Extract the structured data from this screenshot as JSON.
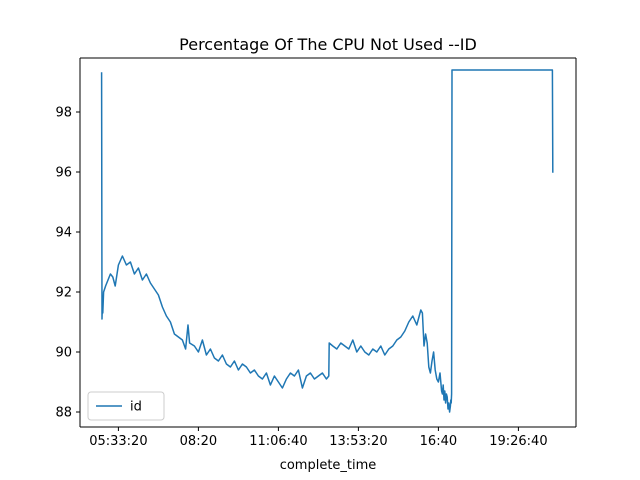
{
  "chart_data": {
    "type": "line",
    "title": "Percentage Of The CPU Not Used --ID",
    "xlabel": "complete_time",
    "ylabel": "",
    "x_tick_labels": [
      "05:33:20",
      "08:20",
      "11:06:40",
      "13:53:20",
      "16:40",
      "19:26:40"
    ],
    "x_ticks_seconds": [
      20000,
      30000,
      40000,
      50000,
      60000,
      70000
    ],
    "xlim_seconds": [
      15200,
      77200
    ],
    "ylim": [
      87.5,
      99.8
    ],
    "y_ticks": [
      88,
      90,
      92,
      94,
      96,
      98
    ],
    "grid": false,
    "legend": "lower left",
    "series": [
      {
        "name": "id",
        "color": "#1f77b4",
        "x_seconds": [
          17900,
          17950,
          18000,
          18050,
          18150,
          18400,
          18700,
          19000,
          19300,
          19600,
          20000,
          20500,
          21000,
          21500,
          22000,
          22500,
          23000,
          23500,
          24000,
          24500,
          25000,
          25500,
          26000,
          26500,
          27000,
          27500,
          28000,
          28400,
          28700,
          28900,
          29500,
          30000,
          30500,
          31000,
          31500,
          32000,
          32500,
          33000,
          33500,
          34000,
          34500,
          35000,
          35500,
          36000,
          36500,
          37000,
          37500,
          38000,
          38500,
          39000,
          39500,
          40000,
          40500,
          41000,
          41500,
          42000,
          42500,
          43000,
          43500,
          44000,
          44500,
          45000,
          45500,
          46000,
          46300,
          46350,
          46800,
          47300,
          47800,
          48300,
          48800,
          49300,
          49800,
          50300,
          50800,
          51300,
          51800,
          52300,
          52800,
          53300,
          53800,
          54300,
          54800,
          55300,
          55800,
          56300,
          56800,
          57300,
          57800,
          58000,
          58200,
          58400,
          58600,
          58800,
          59000,
          59200,
          59400,
          59600,
          59800,
          60000,
          60200,
          60400,
          60500,
          60600,
          60700,
          60800,
          60900,
          61000,
          61100,
          61200,
          61300,
          61400,
          61500,
          61550,
          61600,
          61650,
          61700,
          61700,
          62000,
          65000,
          70000,
          74000,
          74200,
          74250,
          74300
        ],
        "y": [
          99.3,
          91.1,
          91.6,
          91.3,
          92.0,
          92.2,
          92.4,
          92.6,
          92.5,
          92.2,
          92.9,
          93.2,
          92.9,
          93.0,
          92.6,
          92.8,
          92.4,
          92.6,
          92.3,
          92.1,
          91.9,
          91.5,
          91.2,
          91.0,
          90.6,
          90.5,
          90.4,
          90.1,
          90.9,
          90.3,
          90.2,
          90.0,
          90.4,
          89.9,
          90.1,
          89.8,
          89.7,
          89.9,
          89.6,
          89.5,
          89.7,
          89.4,
          89.6,
          89.5,
          89.3,
          89.4,
          89.2,
          89.1,
          89.3,
          88.9,
          89.2,
          89.0,
          88.8,
          89.1,
          89.3,
          89.2,
          89.4,
          88.8,
          89.2,
          89.3,
          89.1,
          89.2,
          89.3,
          89.1,
          89.2,
          90.3,
          90.2,
          90.1,
          90.3,
          90.2,
          90.1,
          90.4,
          90.0,
          90.2,
          90.0,
          89.9,
          90.1,
          90.0,
          90.2,
          89.9,
          90.1,
          90.2,
          90.4,
          90.5,
          90.7,
          91.0,
          91.2,
          90.9,
          91.4,
          91.3,
          90.2,
          90.6,
          90.3,
          89.5,
          89.3,
          89.7,
          90.0,
          89.4,
          89.1,
          89.0,
          89.3,
          88.7,
          88.6,
          88.9,
          88.4,
          88.7,
          88.3,
          88.6,
          88.5,
          88.1,
          88.3,
          88.0,
          88.2,
          88.4,
          88.3,
          88.6,
          99.4,
          99.4,
          99.4,
          99.4,
          99.4,
          99.4,
          99.4,
          99.4,
          96.0
        ]
      }
    ]
  }
}
